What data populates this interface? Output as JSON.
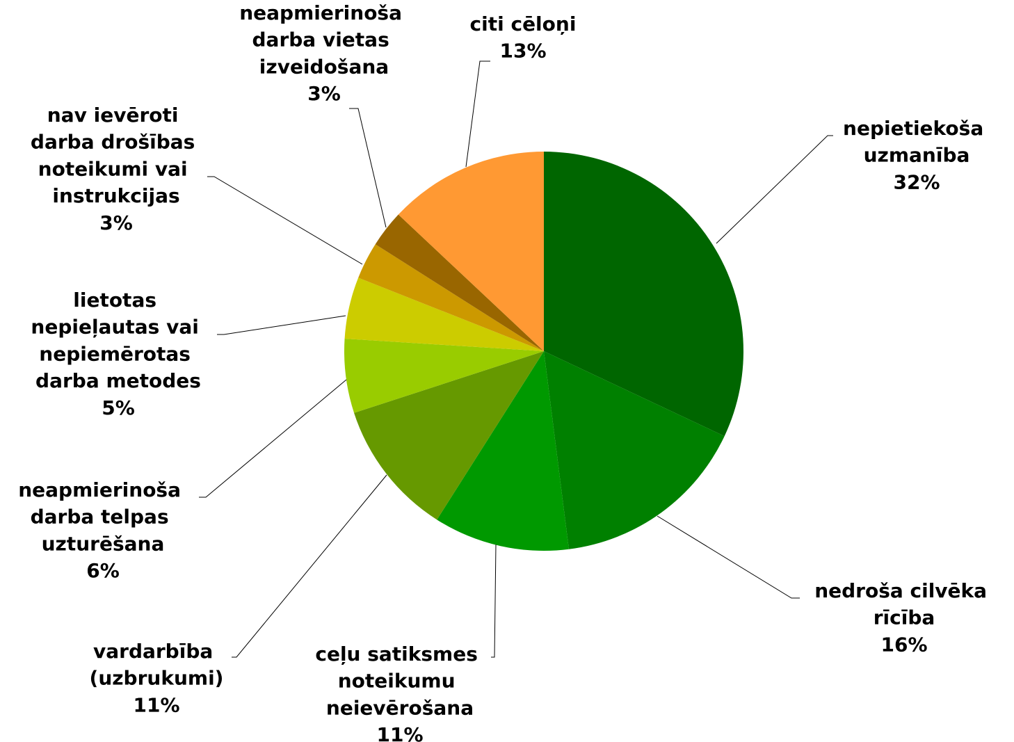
{
  "chart_data": {
    "type": "pie",
    "categories": [
      "nepietiekoša uzmanība",
      "nedroša cilvēka rīcība",
      "ceļu satiksmes noteikumu neievērošana",
      "vardarbība (uzbrukumi)",
      "neapmierinoša darba telpas uzturēšana",
      "lietotas nepieļautas vai nepiemērotas darba metodes",
      "nav ievēroti darba drošības noteikumi vai instrukcijas",
      "neapmierinoša darba vietas izveidošana",
      "citi cēloņi"
    ],
    "values": [
      32,
      16,
      11,
      11,
      6,
      5,
      3,
      3,
      13
    ],
    "value_labels": [
      "32%",
      "16%",
      "11%",
      "11%",
      "6%",
      "5%",
      "3%",
      "3%",
      "13%"
    ],
    "colors": [
      "#006600",
      "#008000",
      "#009900",
      "#669900",
      "#99cc00",
      "#cccc00",
      "#cc9900",
      "#996600",
      "#ff9933"
    ]
  }
}
